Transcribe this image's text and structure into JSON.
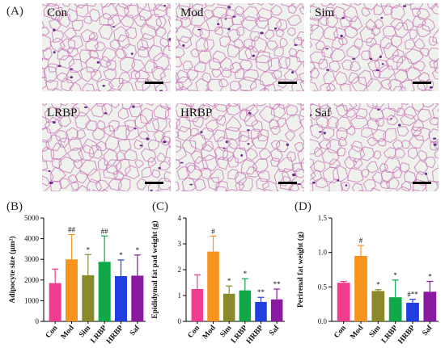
{
  "panel_letters": {
    "a": "(A)",
    "b": "(B)",
    "c": "(C)",
    "d": "(D)"
  },
  "micrographs": [
    {
      "label": "Con"
    },
    {
      "label": "Mod"
    },
    {
      "label": "Sim"
    },
    {
      "label": "LRBP"
    },
    {
      "label": "HRBP"
    },
    {
      "label": "Saf"
    }
  ],
  "colors": {
    "Con": "#f13c8f",
    "Mod": "#f7941d",
    "Sim": "#8b8a2b",
    "LRBP": "#11a84a",
    "HRBP": "#1f3fe0",
    "Saf": "#8a1aa0",
    "tissue_bg": "#eef1ec",
    "membrane": "#c970b8",
    "nuclei": "#6a2f8f"
  },
  "chart_data": [
    {
      "type": "bar",
      "panel": "(B)",
      "categories": [
        "Con",
        "Mod",
        "Sim",
        "LRBP",
        "HRBP",
        "Saf"
      ],
      "values": [
        1850,
        3000,
        2230,
        2880,
        2190,
        2210
      ],
      "errors": [
        680,
        1200,
        1000,
        1250,
        780,
        1000
      ],
      "annotations": [
        "",
        "##",
        "*",
        "##",
        "*",
        "*"
      ],
      "ylabel": "Adipocyte size (μm²)",
      "ylim": [
        0,
        5000
      ],
      "yticks": [
        "0",
        "1000",
        "2000",
        "3000",
        "4000",
        "5000"
      ]
    },
    {
      "type": "bar",
      "panel": "(C)",
      "categories": [
        "Con",
        "Mod",
        "Sim",
        "LRBP",
        "HRBP",
        "Saf"
      ],
      "values": [
        1.25,
        2.7,
        1.07,
        1.2,
        0.75,
        0.85
      ],
      "errors": [
        0.55,
        0.6,
        0.3,
        0.45,
        0.18,
        0.4
      ],
      "annotations": [
        "",
        "#",
        "*",
        "*",
        "**",
        "**"
      ],
      "ylabel": "Epididymal fat pad weight (g)",
      "ylim": [
        0,
        4
      ],
      "yticks": [
        "0",
        "1",
        "2",
        "3",
        "4"
      ]
    },
    {
      "type": "bar",
      "panel": "(D)",
      "categories": [
        "Con",
        "Mod",
        "Sim",
        "LRBP",
        "HRBP",
        "Saf"
      ],
      "values": [
        0.56,
        0.95,
        0.44,
        0.35,
        0.27,
        0.43
      ],
      "errors": [
        0.02,
        0.15,
        0.02,
        0.25,
        0.05,
        0.15
      ],
      "annotations": [
        "",
        "#",
        "*",
        "*",
        "#**",
        "*"
      ],
      "ylabel": "Perirenal fat weight (g)",
      "ylim": [
        0,
        1.5
      ],
      "yticks": [
        "0.0",
        "0.5",
        "1.0",
        "1.5"
      ]
    }
  ]
}
